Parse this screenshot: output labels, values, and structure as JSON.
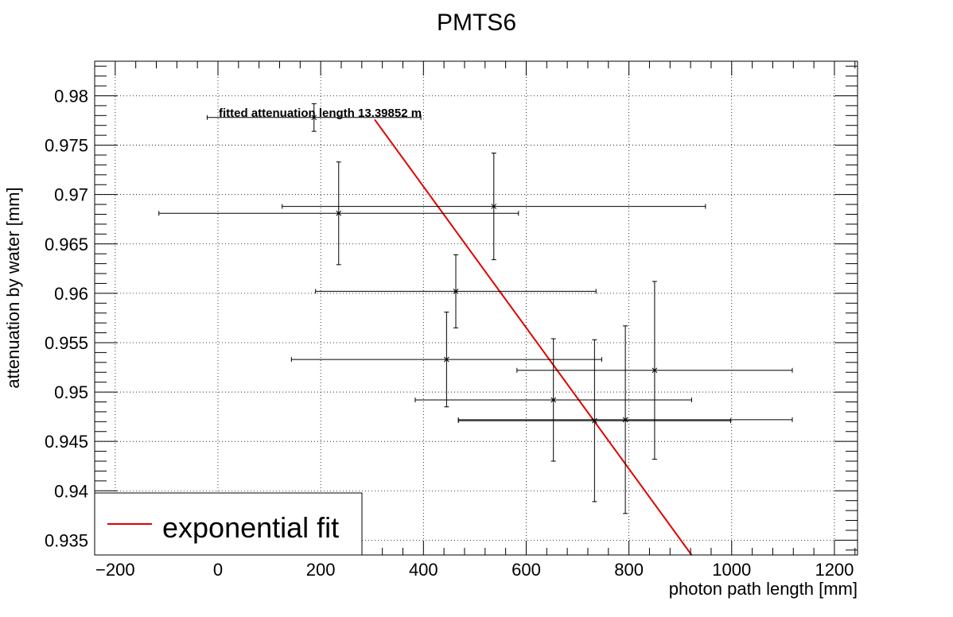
{
  "chart_data": {
    "type": "scatter",
    "title": "PMTS6",
    "xlabel": "photon path length [mm]",
    "ylabel": "attenuation by water [mm]",
    "xlim": [
      -240,
      1245
    ],
    "ylim": [
      0.9335,
      0.9835
    ],
    "x_ticks": [
      -200,
      0,
      200,
      400,
      600,
      800,
      1000,
      1200
    ],
    "x_tick_labels": [
      "−200",
      "0",
      "200",
      "400",
      "600",
      "800",
      "1000",
      "1200"
    ],
    "y_ticks": [
      0.935,
      0.94,
      0.945,
      0.95,
      0.955,
      0.96,
      0.965,
      0.97,
      0.975,
      0.98
    ],
    "y_tick_labels": [
      "0.935",
      "0.94",
      "0.945",
      "0.95",
      "0.955",
      "0.96",
      "0.965",
      "0.97",
      "0.975",
      "0.98"
    ],
    "grid": true,
    "annotation": "fitted attenuation length 13.39852 m",
    "points": [
      {
        "x": 187,
        "y": 0.9778,
        "xerr": 208,
        "yerr": 0.0014
      },
      {
        "x": 235,
        "y": 0.9681,
        "xerr": 350,
        "yerr": 0.0052
      },
      {
        "x": 537,
        "y": 0.9688,
        "xerr": 412,
        "yerr": 0.0054
      },
      {
        "x": 463,
        "y": 0.9602,
        "xerr": 273,
        "yerr": 0.0037
      },
      {
        "x": 445,
        "y": 0.9533,
        "xerr": 302,
        "yerr": 0.0048
      },
      {
        "x": 850,
        "y": 0.9522,
        "xerr": 268,
        "yerr": 0.009
      },
      {
        "x": 653,
        "y": 0.9492,
        "xerr": 269,
        "yerr": 0.0062
      },
      {
        "x": 733,
        "y": 0.9471,
        "xerr": 265,
        "yerr": 0.0082
      },
      {
        "x": 793,
        "y": 0.9472,
        "xerr": 325,
        "yerr": 0.0095
      }
    ],
    "fit": {
      "name": "exponential fit",
      "color": "#e00000",
      "x": [
        305,
        922
      ],
      "y": [
        0.9776,
        0.9335
      ]
    },
    "legend_position": "bottom-left"
  }
}
